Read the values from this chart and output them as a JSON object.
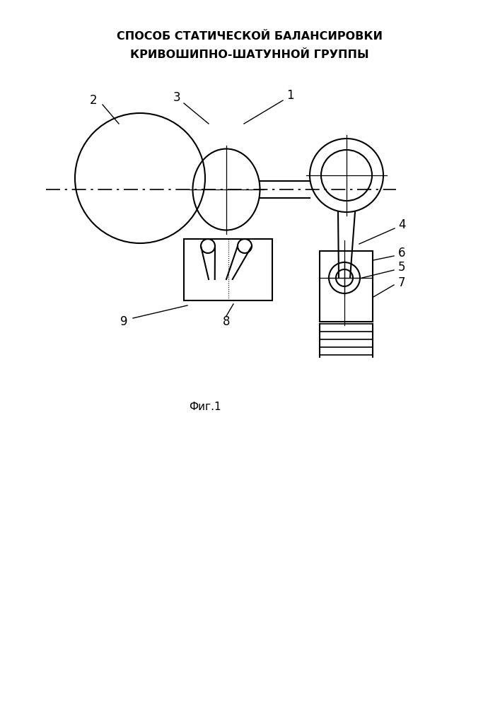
{
  "title_line1": "СПОСОБ СТАТИЧЕСКОЙ БАЛАНСИРОВКИ",
  "title_line2": "КРИВОШИПНО-ШАТУННОЙ ГРУППЫ",
  "fig_label": "Фиг.1",
  "background_color": "#ffffff",
  "line_color": "#000000",
  "lw": 1.5
}
